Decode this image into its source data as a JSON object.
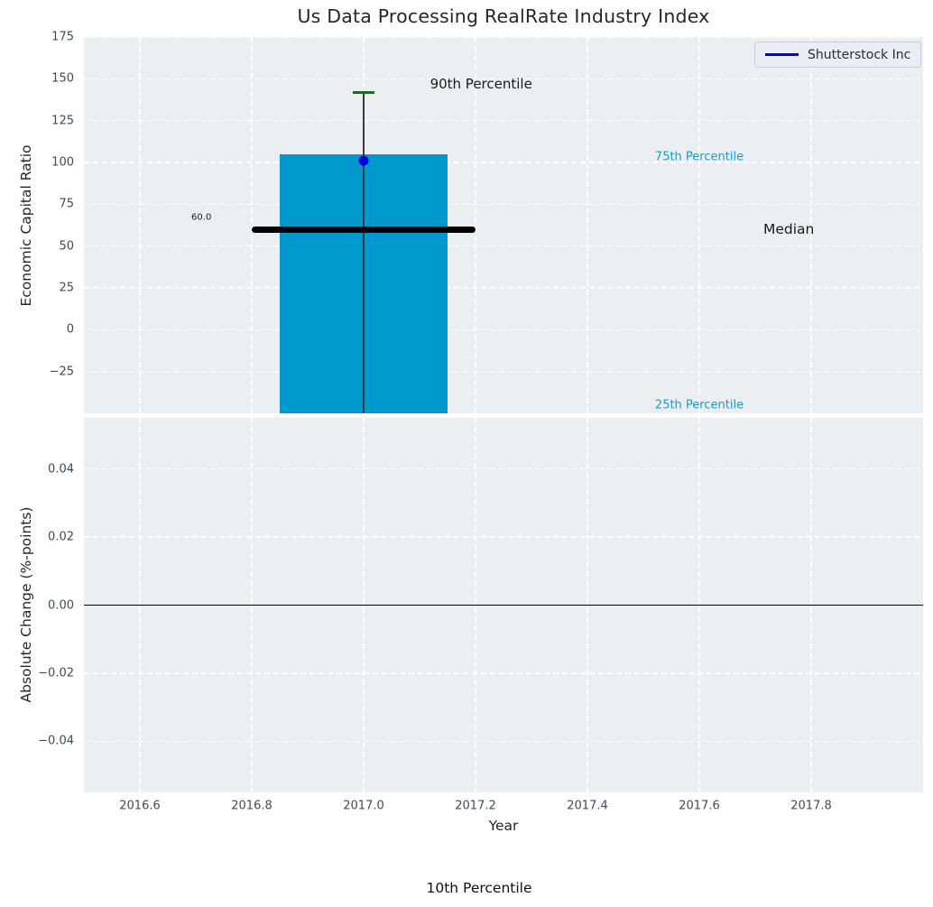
{
  "figure": {
    "footer_annotation": "10th Percentile"
  },
  "legend": {
    "position": "upper right",
    "items": [
      {
        "label": "Shutterstock Inc",
        "color": "#0000e1"
      }
    ]
  },
  "colors": {
    "plot_bg": "#ebeff1",
    "grid": "#ffffff",
    "bar": "#0099cd",
    "median_line": "#000000",
    "whisker": "#3c3c3c",
    "cap": "#008000",
    "marker": "#0000dd",
    "tick_label": "#3e4a5d",
    "axis_label": "#262626",
    "zero_line": "#000000"
  },
  "chart_data": [
    {
      "type": "bar",
      "subplot": "top",
      "title": "Us Data Processing RealRate Industry Index",
      "ylabel": "Economic Capital Ratio",
      "xlim": [
        2016.5,
        2018.0
      ],
      "ylim": [
        -50,
        175
      ],
      "yticks": [
        175,
        150,
        125,
        100,
        75,
        50,
        25,
        0,
        -25
      ],
      "ytick_labels": [
        "175",
        "150",
        "125",
        "100",
        "75",
        "50",
        "25",
        "0",
        "−25"
      ],
      "grid": true,
      "legend_position": "upper right",
      "series": [
        {
          "name": "Shutterstock Inc",
          "year": 2017.0,
          "value": 101
        }
      ],
      "box": {
        "year": 2017.0,
        "p90": 142,
        "p75": 105,
        "median": 60,
        "median_label": "60.0",
        "p25": -45,
        "p10": null,
        "bar_x_range": [
          2016.85,
          2017.15
        ],
        "median_x_range": [
          2016.8,
          2017.2
        ],
        "cap_x_range": [
          2016.98,
          2017.02
        ],
        "bar_clipped_at_bottom": true
      },
      "annotations": [
        {
          "text": "90th Percentile",
          "x": 2017.21,
          "y": 147,
          "size": 15,
          "color": "#1a1a1a"
        },
        {
          "text": "75th Percentile",
          "x": 2017.6,
          "y": 103,
          "size": 13,
          "color": "#189bd1"
        },
        {
          "text": "Median",
          "x": 2017.76,
          "y": 60,
          "size": 15.5,
          "color": "#1a1a1a"
        },
        {
          "text": "25th Percentile",
          "x": 2017.6,
          "y": -45,
          "size": 13,
          "color": "#189bd1"
        },
        {
          "text": "60.0",
          "x": 2016.71,
          "y": 67,
          "size": 10,
          "color": "#1a1a1a"
        }
      ]
    },
    {
      "type": "line",
      "subplot": "bottom",
      "ylabel": "Absolute Change (%-points)",
      "xlabel": "Year",
      "xlim": [
        2016.5,
        2018.0
      ],
      "ylim": [
        -0.055,
        0.055
      ],
      "yticks": [
        0.04,
        0.02,
        0,
        -0.02,
        -0.04
      ],
      "ytick_labels": [
        "0.04",
        "0.02",
        "0.00",
        "−0.02",
        "−0.04"
      ],
      "xticks": [
        2016.6,
        2016.8,
        2017.0,
        2017.2,
        2017.4,
        2017.6,
        2017.8
      ],
      "xtick_labels": [
        "2016.6",
        "2016.8",
        "2017.0",
        "2017.2",
        "2017.4",
        "2017.6",
        "2017.8"
      ],
      "grid": true,
      "zero_line": 0.0,
      "series": []
    }
  ]
}
